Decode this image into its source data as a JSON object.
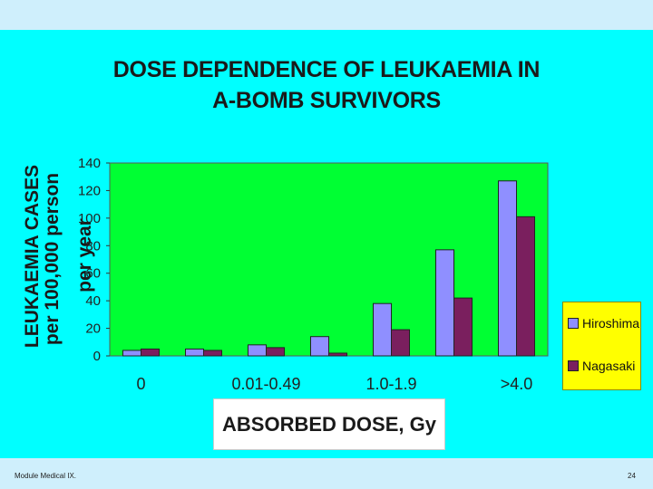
{
  "slide": {
    "title_line1": "DOSE DEPENDENCE OF LEUKAEMIA IN",
    "title_line2": "A-BOMB SURVIVORS",
    "footer_left": "Module Medical IX.",
    "page_number": "24"
  },
  "chart_data": {
    "type": "bar",
    "ylabel_lines": [
      "LEUKAEMIA CASES",
      "per 100,000 person",
      "per year"
    ],
    "xlabel": "ABSORBED DOSE, Gy",
    "ylim": [
      0,
      140
    ],
    "yticks": [
      0,
      20,
      40,
      60,
      80,
      100,
      120,
      140
    ],
    "categories": [
      "0",
      "",
      "0.01-0.49",
      "",
      "1.0-1.9",
      "",
      ">4.0"
    ],
    "series": [
      {
        "name": "Hiroshima",
        "values": [
          4,
          5,
          8,
          14,
          38,
          77,
          127
        ]
      },
      {
        "name": "Nagasaki",
        "values": [
          5,
          4,
          6,
          2,
          19,
          42,
          101
        ]
      }
    ],
    "legend_placement": "right",
    "grid": false,
    "colors": {
      "plot_background": "#00ff33",
      "hiroshima": "#8f8fff",
      "nagasaki": "#7a1f5e",
      "legend_background": "#ffff00",
      "slide_background": "#00ffff"
    }
  }
}
